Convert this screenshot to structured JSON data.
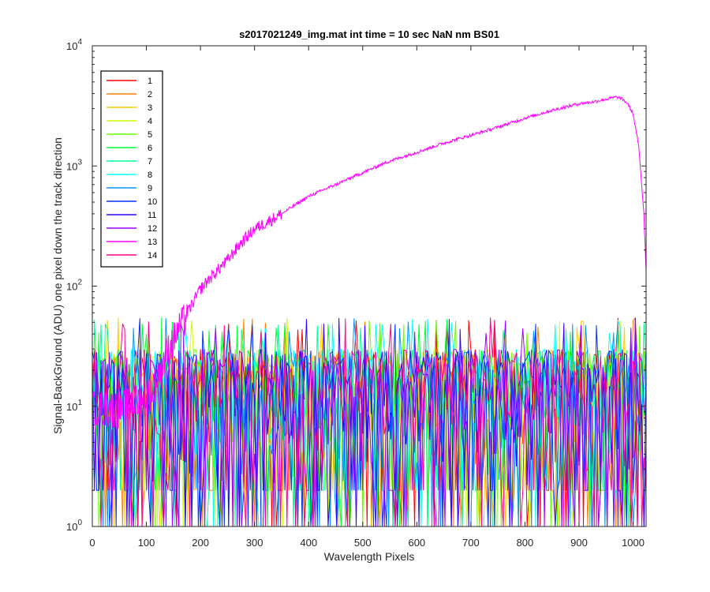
{
  "chart_data": {
    "type": "line",
    "title": "s2017021249_img.mat int time = 10 sec  NaN nm BS01",
    "xlabel": "Wavelength Pixels",
    "ylabel": "Signal-BackGround (ADU) one pixel down the track direction",
    "xlim": [
      0,
      1024
    ],
    "ylim": [
      1,
      10000
    ],
    "yscale": "log",
    "grid": false,
    "legend_position": "top-left",
    "x_ticks": [
      0,
      100,
      200,
      300,
      400,
      500,
      600,
      700,
      800,
      900,
      1000
    ],
    "x_tick_labels": [
      "0",
      "100",
      "200",
      "300",
      "400",
      "500",
      "600",
      "700",
      "800",
      "900",
      "1000"
    ],
    "y_ticks": [
      {
        "value": 1,
        "base": "10",
        "exp": "0"
      },
      {
        "value": 10,
        "base": "10",
        "exp": "1"
      },
      {
        "value": 100,
        "base": "10",
        "exp": "2"
      },
      {
        "value": 1000,
        "base": "10",
        "exp": "3"
      },
      {
        "value": 10000,
        "base": "10",
        "exp": "4"
      }
    ],
    "noise_band": {
      "typical_range": [
        2,
        30
      ],
      "peak_spikes": [
        40,
        55
      ]
    },
    "series": [
      {
        "name": "1",
        "color": "#ff0000",
        "kind": "noise"
      },
      {
        "name": "2",
        "color": "#ff7f00",
        "kind": "noise"
      },
      {
        "name": "3",
        "color": "#ffcc00",
        "kind": "noise"
      },
      {
        "name": "4",
        "color": "#ccff00",
        "kind": "noise"
      },
      {
        "name": "5",
        "color": "#66ff00",
        "kind": "noise"
      },
      {
        "name": "6",
        "color": "#00ff33",
        "kind": "noise"
      },
      {
        "name": "7",
        "color": "#00ff99",
        "kind": "noise"
      },
      {
        "name": "8",
        "color": "#00ffff",
        "kind": "noise"
      },
      {
        "name": "9",
        "color": "#0099ff",
        "kind": "noise"
      },
      {
        "name": "10",
        "color": "#0033ff",
        "kind": "noise"
      },
      {
        "name": "11",
        "color": "#3300ff",
        "kind": "noise"
      },
      {
        "name": "12",
        "color": "#9900ff",
        "kind": "noise"
      },
      {
        "name": "13",
        "color": "#ff00ff",
        "kind": "signal",
        "x": [
          0,
          50,
          100,
          120,
          140,
          160,
          180,
          200,
          220,
          250,
          275,
          300,
          350,
          400,
          450,
          500,
          550,
          600,
          650,
          700,
          750,
          800,
          850,
          900,
          925,
          950,
          970,
          980,
          990,
          1000,
          1010,
          1020,
          1024
        ],
        "y": [
          10,
          10,
          12,
          18,
          30,
          45,
          65,
          95,
          120,
          165,
          230,
          300,
          400,
          560,
          700,
          880,
          1100,
          1300,
          1550,
          1800,
          2100,
          2500,
          2900,
          3300,
          3400,
          3600,
          3750,
          3600,
          3300,
          2700,
          1500,
          400,
          140
        ]
      },
      {
        "name": "14",
        "color": "#ff0088",
        "kind": "noise"
      }
    ]
  }
}
